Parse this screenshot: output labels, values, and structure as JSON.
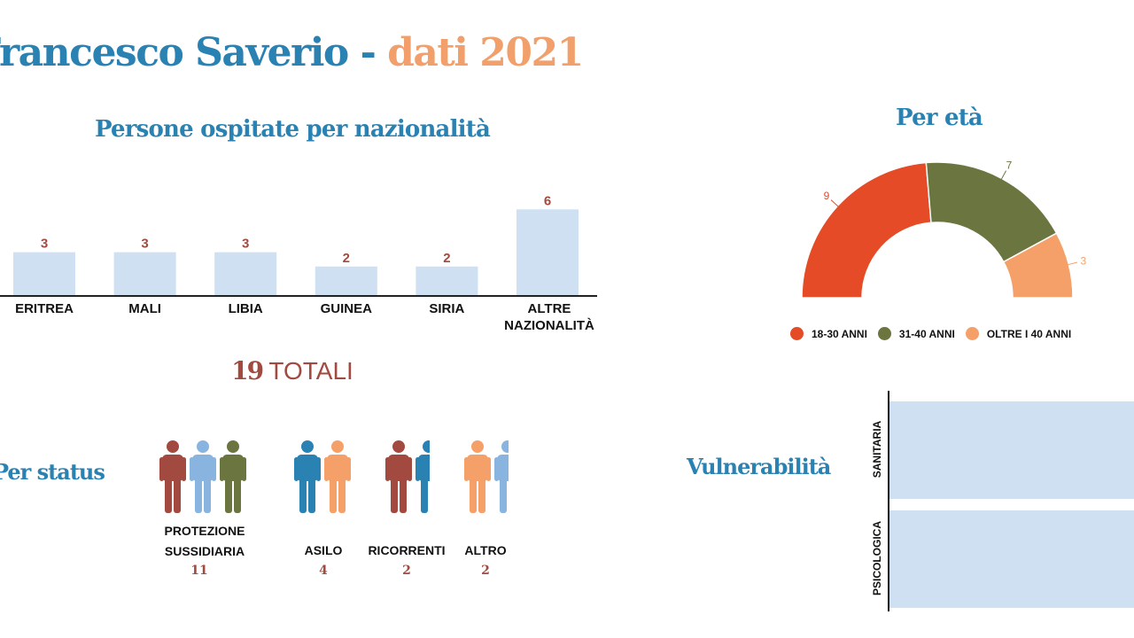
{
  "header": {
    "title_part1": "Francesco Saverio - ",
    "title_part2": "dati 2021"
  },
  "nationality": {
    "title": "Persone ospitate per nazionalità",
    "total_number": "19",
    "total_label": " TOTALI"
  },
  "age": {
    "title": "Per età"
  },
  "status": {
    "title": "Per status",
    "groups": [
      {
        "label_line1": "PROTEZIONE",
        "label_line2": "SUSSIDIARIA",
        "value": "11"
      },
      {
        "label_line1": "ASILO",
        "label_line2": "",
        "value": "4"
      },
      {
        "label_line1": "RICORRENTI",
        "label_line2": "",
        "value": "2"
      },
      {
        "label_line1": "ALTRO",
        "label_line2": "",
        "value": "2"
      }
    ]
  },
  "vulnerability": {
    "title": "Vulnerabilità",
    "categories": [
      "SANITARIA",
      "PSICOLOGICA"
    ]
  },
  "colors": {
    "blue": "#2a82b3",
    "orange_title": "#f2a06b",
    "bar": "#cfe0f2",
    "label_red": "#a24a3f",
    "red": "#e54b26",
    "olive": "#6b7540",
    "orange": "#f4a068",
    "light_blue": "#8ab4e0"
  },
  "chart_data": [
    {
      "type": "bar",
      "title": "Persone ospitate per nazionalità",
      "categories": [
        "ERITREA",
        "MALI",
        "LIBIA",
        "GUINEA",
        "SIRIA",
        "ALTRE NAZIONALITÀ"
      ],
      "values": [
        3,
        3,
        3,
        2,
        2,
        6
      ],
      "ylim": [
        0,
        6.7
      ],
      "grid": false,
      "color": "#cfe0f2"
    },
    {
      "type": "pie",
      "variant": "half-donut",
      "title": "Per età",
      "categories": [
        "18-30 ANNI",
        "31-40 ANNI",
        "OLTRE I 40 ANNI"
      ],
      "values": [
        9,
        7,
        3
      ],
      "colors": [
        "#e54b26",
        "#6b7540",
        "#f4a068"
      ],
      "legend": "bottom"
    },
    {
      "type": "bar",
      "orientation": "horizontal",
      "title": "Vulnerabilità",
      "categories": [
        "SANITARIA",
        "PSICOLOGICA"
      ]
    }
  ]
}
